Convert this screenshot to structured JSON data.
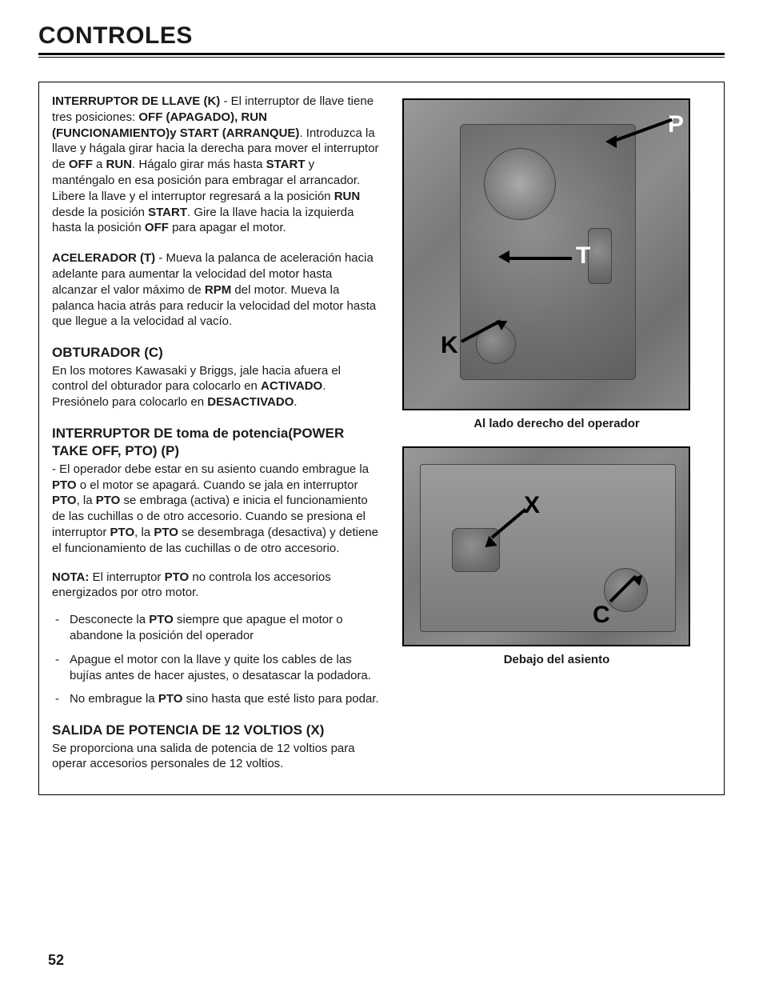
{
  "page": {
    "title": "CONTROLES",
    "number": "52"
  },
  "sections": {
    "key_switch": {
      "heading": "INTERRUPTOR DE LLAVE (K)",
      "body_html": " - El interruptor de llave tiene tres posiciones: <b>OFF (APAGADO), RUN (FUNCIONAMIENTO)y START (ARRANQUE)</b>. Introduzca la llave y hágala girar hacia la derecha para mover el interruptor de <b>OFF</b> a <b>RUN</b>. Hágalo girar más hasta <b>START</b> y manténgalo en esa posición para embragar el arrancador. Libere la llave y el interruptor regresará a la posición <b>RUN</b> desde la posición <b>START</b>. Gire la llave hacia la izquierda hasta la posición <b>OFF</b> para apagar el motor."
    },
    "throttle": {
      "heading": "ACELERADOR (T)",
      "body_html": " - Mueva la palanca de aceleración hacia adelante para aumentar la velocidad del motor hasta alcanzar el valor máximo de <b>RPM</b> del motor. Mueva la palanca hacia atrás para reducir la velocidad del motor hasta que llegue a la velocidad al vacío."
    },
    "choke": {
      "heading": "OBTURADOR (C)",
      "body_html": "En los motores Kawasaki y Briggs, jale hacia afuera el control del obturador para colocarlo en <b>ACTIVADO</b>. Presiónelo para colocarlo en <b>DESACTIVADO</b>."
    },
    "pto": {
      "heading": "INTERRUPTOR DE  toma de potencia(POWER TAKE OFF, PTO)  (P)",
      "body_html": "- El operador debe estar en su asiento cuando embrague la <b>PTO</b> o el motor se apagará. Cuando se jala en interruptor <b>PTO</b>, la <b>PTO</b> se embraga (activa) e inicia el funcionamiento de las cuchillas o de otro accesorio. Cuando se presiona el interruptor <b>PTO</b>, la <b>PTO</b> se desembraga (desactiva) y detiene el funcionamiento de las cuchillas o de otro accesorio.",
      "note_label": "NOTA:",
      "note_html": " El interruptor <b>PTO</b> no controla los accesorios energizados por otro motor.",
      "bullets": [
        "Desconecte la <b>PTO</b> siempre que apague el motor o abandone la posición del operador",
        "Apague el motor con la llave y quite los cables de las bujías antes de hacer ajustes, o desatascar la podadora.",
        "No embrague la <b>PTO</b> sino hasta que esté listo para podar."
      ]
    },
    "outlet": {
      "heading": "SALIDA DE POTENCIA DE 12 VOLTIOS (X)",
      "body_html": "Se proporciona una salida de potencia de 12 voltios para operar accesorios personales de 12 voltios."
    }
  },
  "figures": {
    "top": {
      "caption": "Al lado derecho del operador",
      "labels": {
        "P": "P",
        "T": "T",
        "K": "K"
      }
    },
    "bottom": {
      "caption": "Debajo del asiento",
      "labels": {
        "X": "X",
        "C": "C"
      }
    }
  }
}
